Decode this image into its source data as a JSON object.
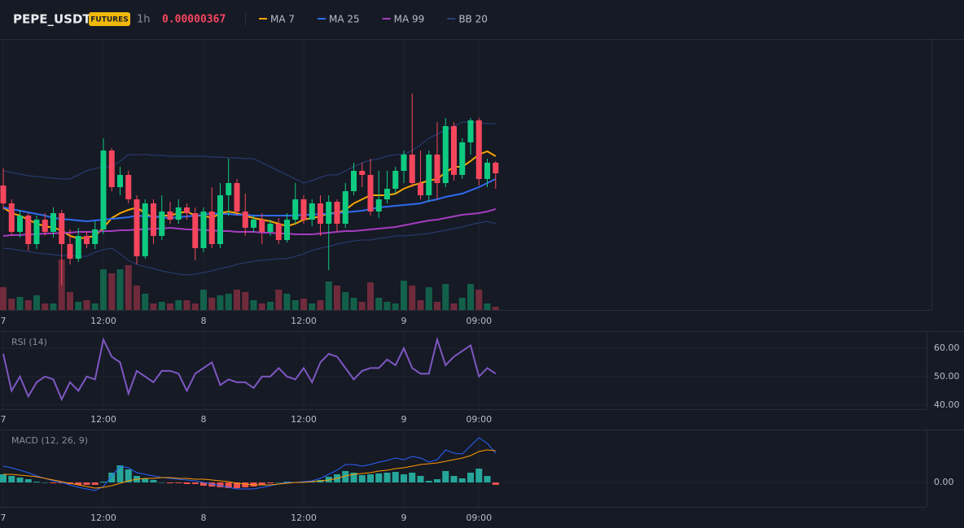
{
  "header": {
    "symbol": "PEPE_USDT",
    "badge": "FUTURES",
    "interval": "1h",
    "price": "0.00000367"
  },
  "chart_data": [
    {
      "type": "candlestick",
      "categories": [
        "7",
        null,
        null,
        null,
        null,
        null,
        null,
        null,
        null,
        null,
        null,
        null,
        "12:00",
        null,
        null,
        null,
        null,
        null,
        null,
        null,
        null,
        null,
        null,
        null,
        "8",
        null,
        null,
        null,
        null,
        null,
        null,
        null,
        null,
        null,
        null,
        null,
        "12:00",
        null,
        null,
        null,
        null,
        null,
        null,
        null,
        null,
        null,
        null,
        null,
        "9",
        null,
        null,
        null,
        null,
        null,
        null,
        null,
        null,
        "09:00",
        null,
        null
      ],
      "open": [
        3.655e-06,
        3.633e-06,
        3.598e-06,
        3.618e-06,
        3.583e-06,
        3.613e-06,
        3.598e-06,
        3.621e-06,
        3.583e-06,
        3.565e-06,
        3.593e-06,
        3.583e-06,
        3.601e-06,
        3.698e-06,
        3.653e-06,
        3.668e-06,
        3.638e-06,
        3.568e-06,
        3.633e-06,
        3.593e-06,
        3.623e-06,
        3.613e-06,
        3.628e-06,
        3.621e-06,
        3.578e-06,
        3.623e-06,
        3.583e-06,
        3.643e-06,
        3.658e-06,
        3.623e-06,
        3.603e-06,
        3.613e-06,
        3.598e-06,
        3.608e-06,
        3.588e-06,
        3.613e-06,
        3.638e-06,
        3.613e-06,
        3.633e-06,
        3.608e-06,
        3.635e-06,
        3.608e-06,
        3.648e-06,
        3.673e-06,
        3.668e-06,
        3.623e-06,
        3.638e-06,
        3.651e-06,
        3.673e-06,
        3.693e-06,
        3.658e-06,
        3.643e-06,
        3.693e-06,
        3.658e-06,
        3.728e-06,
        3.668e-06,
        3.708e-06,
        3.735e-06,
        3.663e-06,
        3.683e-06
      ],
      "close": [
        3.633e-06,
        3.598e-06,
        3.618e-06,
        3.583e-06,
        3.613e-06,
        3.598e-06,
        3.621e-06,
        3.583e-06,
        3.565e-06,
        3.593e-06,
        3.583e-06,
        3.601e-06,
        3.698e-06,
        3.653e-06,
        3.668e-06,
        3.638e-06,
        3.568e-06,
        3.633e-06,
        3.593e-06,
        3.623e-06,
        3.613e-06,
        3.628e-06,
        3.621e-06,
        3.578e-06,
        3.623e-06,
        3.583e-06,
        3.643e-06,
        3.658e-06,
        3.623e-06,
        3.603e-06,
        3.613e-06,
        3.598e-06,
        3.608e-06,
        3.588e-06,
        3.613e-06,
        3.638e-06,
        3.613e-06,
        3.633e-06,
        3.608e-06,
        3.635e-06,
        3.608e-06,
        3.648e-06,
        3.673e-06,
        3.668e-06,
        3.623e-06,
        3.638e-06,
        3.651e-06,
        3.673e-06,
        3.693e-06,
        3.658e-06,
        3.643e-06,
        3.693e-06,
        3.658e-06,
        3.728e-06,
        3.668e-06,
        3.708e-06,
        3.735e-06,
        3.663e-06,
        3.683e-06,
        3.67e-06
      ],
      "high": [
        3.676e-06,
        3.638e-06,
        3.625e-06,
        3.621e-06,
        3.618e-06,
        3.621e-06,
        3.628e-06,
        3.625e-06,
        3.601e-06,
        3.603e-06,
        3.598e-06,
        3.611e-06,
        3.713e-06,
        3.701e-06,
        3.678e-06,
        3.673e-06,
        3.643e-06,
        3.638e-06,
        3.638e-06,
        3.643e-06,
        3.635e-06,
        3.638e-06,
        3.633e-06,
        3.628e-06,
        3.628e-06,
        3.653e-06,
        3.658e-06,
        3.688e-06,
        3.663e-06,
        3.645e-06,
        3.618e-06,
        3.621e-06,
        3.613e-06,
        3.615e-06,
        3.621e-06,
        3.658e-06,
        3.643e-06,
        3.638e-06,
        3.643e-06,
        3.643e-06,
        3.638e-06,
        3.658e-06,
        3.683e-06,
        3.683e-06,
        3.688e-06,
        3.673e-06,
        3.673e-06,
        3.678e-06,
        3.698e-06,
        3.768e-06,
        3.698e-06,
        3.698e-06,
        3.733e-06,
        3.738e-06,
        3.733e-06,
        3.713e-06,
        3.738e-06,
        3.738e-06,
        3.688e-06,
        3.685e-06
      ],
      "low": [
        3.625e-06,
        3.593e-06,
        3.591e-06,
        3.575e-06,
        3.577e-06,
        3.593e-06,
        3.591e-06,
        3.533e-06,
        3.558e-06,
        3.561e-06,
        3.578e-06,
        3.577e-06,
        3.595e-06,
        3.648e-06,
        3.643e-06,
        3.633e-06,
        3.558e-06,
        3.565e-06,
        3.583e-06,
        3.588e-06,
        3.608e-06,
        3.608e-06,
        3.613e-06,
        3.563e-06,
        3.573e-06,
        3.578e-06,
        3.578e-06,
        3.618e-06,
        3.618e-06,
        3.593e-06,
        3.598e-06,
        3.583e-06,
        3.593e-06,
        3.583e-06,
        3.585e-06,
        3.608e-06,
        3.608e-06,
        3.605e-06,
        3.593e-06,
        3.551e-06,
        3.598e-06,
        3.603e-06,
        3.643e-06,
        3.653e-06,
        3.618e-06,
        3.615e-06,
        3.633e-06,
        3.645e-06,
        3.658e-06,
        3.653e-06,
        3.638e-06,
        3.635e-06,
        3.638e-06,
        3.653e-06,
        3.661e-06,
        3.663e-06,
        3.693e-06,
        3.655e-06,
        3.653e-06,
        3.651e-06
      ],
      "volume": [
        28,
        14,
        16,
        12,
        18,
        8,
        8,
        62,
        22,
        10,
        12,
        8,
        50,
        45,
        50,
        55,
        30,
        20,
        8,
        10,
        8,
        12,
        12,
        8,
        25,
        15,
        18,
        20,
        25,
        22,
        12,
        8,
        10,
        25,
        20,
        12,
        14,
        8,
        12,
        35,
        30,
        22,
        15,
        10,
        34,
        15,
        10,
        8,
        36,
        30,
        12,
        28,
        10,
        32,
        8,
        15,
        32,
        25,
        8,
        4
      ],
      "volume_lim": [
        0,
        100
      ],
      "ylim": [
        3.502e-06,
        3.835e-06
      ],
      "up_color": "#0ecb81",
      "down_color": "#f6465d",
      "series": [
        {
          "name": "MA 7",
          "color": "#f7a600",
          "values": [
            3.628e-06,
            3.621e-06,
            3.618e-06,
            3.613e-06,
            3.608e-06,
            3.605e-06,
            3.603e-06,
            3.6e-06,
            3.593e-06,
            3.59e-06,
            3.591e-06,
            3.593e-06,
            3.603e-06,
            3.615e-06,
            3.621e-06,
            3.625e-06,
            3.628e-06,
            3.621e-06,
            3.615e-06,
            3.618e-06,
            3.618e-06,
            3.621e-06,
            3.623e-06,
            3.618e-06,
            3.618e-06,
            3.615e-06,
            3.621e-06,
            3.623e-06,
            3.621e-06,
            3.618e-06,
            3.615e-06,
            3.613e-06,
            3.611e-06,
            3.608e-06,
            3.605e-06,
            3.608e-06,
            3.613e-06,
            3.615e-06,
            3.617e-06,
            3.621e-06,
            3.621e-06,
            3.625e-06,
            3.633e-06,
            3.638e-06,
            3.643e-06,
            3.643e-06,
            3.643e-06,
            3.645e-06,
            3.651e-06,
            3.655e-06,
            3.658e-06,
            3.661e-06,
            3.663e-06,
            3.671e-06,
            3.678e-06,
            3.678e-06,
            3.685e-06,
            3.693e-06,
            3.697e-06,
            3.691e-06
          ]
        },
        {
          "name": "MA 25",
          "color": "#2f6bef",
          "values": [
            3.628e-06,
            3.626e-06,
            3.624e-06,
            3.622e-06,
            3.62e-06,
            3.618e-06,
            3.615e-06,
            3.614e-06,
            3.613e-06,
            3.612e-06,
            3.611e-06,
            3.612e-06,
            3.613e-06,
            3.614e-06,
            3.615e-06,
            3.616e-06,
            3.618e-06,
            3.617e-06,
            3.617e-06,
            3.616e-06,
            3.615e-06,
            3.616e-06,
            3.617e-06,
            3.618e-06,
            3.619e-06,
            3.621e-06,
            3.62e-06,
            3.62e-06,
            3.619e-06,
            3.619e-06,
            3.618e-06,
            3.618e-06,
            3.618e-06,
            3.618e-06,
            3.618e-06,
            3.618e-06,
            3.619e-06,
            3.619e-06,
            3.62e-06,
            3.62e-06,
            3.621e-06,
            3.622e-06,
            3.623e-06,
            3.624e-06,
            3.626e-06,
            3.628e-06,
            3.629e-06,
            3.63e-06,
            3.631e-06,
            3.632e-06,
            3.633e-06,
            3.636e-06,
            3.638e-06,
            3.641e-06,
            3.643e-06,
            3.645e-06,
            3.649e-06,
            3.653e-06,
            3.658e-06,
            3.663e-06
          ]
        },
        {
          "name": "MA 99",
          "color": "#a53cc0",
          "values": [
            3.593e-06,
            3.594e-06,
            3.594e-06,
            3.595e-06,
            3.595e-06,
            3.596e-06,
            3.596e-06,
            3.597e-06,
            3.597e-06,
            3.598e-06,
            3.598e-06,
            3.598e-06,
            3.599e-06,
            3.599e-06,
            3.6e-06,
            3.6e-06,
            3.601e-06,
            3.601e-06,
            3.602e-06,
            3.602e-06,
            3.603e-06,
            3.602e-06,
            3.601e-06,
            3.601e-06,
            3.6e-06,
            3.6e-06,
            3.599e-06,
            3.599e-06,
            3.598e-06,
            3.598e-06,
            3.598e-06,
            3.597e-06,
            3.597e-06,
            3.596e-06,
            3.596e-06,
            3.595e-06,
            3.595e-06,
            3.595e-06,
            3.596e-06,
            3.597e-06,
            3.598e-06,
            3.599e-06,
            3.599e-06,
            3.6e-06,
            3.601e-06,
            3.602e-06,
            3.603e-06,
            3.604e-06,
            3.606e-06,
            3.608e-06,
            3.61e-06,
            3.612e-06,
            3.613e-06,
            3.615e-06,
            3.617e-06,
            3.619e-06,
            3.62e-06,
            3.621e-06,
            3.623e-06,
            3.626e-06
          ]
        },
        {
          "name": "BB 20",
          "color": "#2a3f7a",
          "values": [
            3.673e-06,
            3.671e-06,
            3.669e-06,
            3.667e-06,
            3.666e-06,
            3.665e-06,
            3.664e-06,
            3.663e-06,
            3.663e-06,
            3.668e-06,
            3.673e-06,
            3.676e-06,
            3.678e-06,
            3.678e-06,
            3.685e-06,
            3.693e-06,
            3.693e-06,
            3.693e-06,
            3.692e-06,
            3.692e-06,
            3.691e-06,
            3.691e-06,
            3.691e-06,
            3.691e-06,
            3.691e-06,
            3.69e-06,
            3.69e-06,
            3.689e-06,
            3.689e-06,
            3.688e-06,
            3.688e-06,
            3.683e-06,
            3.678e-06,
            3.673e-06,
            3.668e-06,
            3.663e-06,
            3.658e-06,
            3.661e-06,
            3.665e-06,
            3.668e-06,
            3.668e-06,
            3.673e-06,
            3.678e-06,
            3.683e-06,
            3.686e-06,
            3.688e-06,
            3.691e-06,
            3.693e-06,
            3.693e-06,
            3.698e-06,
            3.705e-06,
            3.713e-06,
            3.718e-06,
            3.723e-06,
            3.728e-06,
            3.733e-06,
            3.733e-06,
            3.732e-06,
            3.731e-06,
            3.731e-06
          ],
          "lower": [
            3.578e-06,
            3.577e-06,
            3.575e-06,
            3.574e-06,
            3.572e-06,
            3.571e-06,
            3.57e-06,
            3.569e-06,
            3.569e-06,
            3.568e-06,
            3.568e-06,
            3.573e-06,
            3.576e-06,
            3.578e-06,
            3.571e-06,
            3.563e-06,
            3.558e-06,
            3.555e-06,
            3.553e-06,
            3.55e-06,
            3.548e-06,
            3.546e-06,
            3.545e-06,
            3.546e-06,
            3.548e-06,
            3.55e-06,
            3.553e-06,
            3.555e-06,
            3.558e-06,
            3.56e-06,
            3.562e-06,
            3.563e-06,
            3.564e-06,
            3.565e-06,
            3.565e-06,
            3.568e-06,
            3.571e-06,
            3.575e-06,
            3.578e-06,
            3.58e-06,
            3.583e-06,
            3.585e-06,
            3.587e-06,
            3.588e-06,
            3.588e-06,
            3.59e-06,
            3.591e-06,
            3.593e-06,
            3.593e-06,
            3.594e-06,
            3.595e-06,
            3.596e-06,
            3.598e-06,
            3.6e-06,
            3.602e-06,
            3.604e-06,
            3.607e-06,
            3.609e-06,
            3.611e-06,
            3.608e-06
          ]
        }
      ]
    },
    {
      "type": "line",
      "title": "RSI (14)",
      "series": [
        {
          "color": "#7e57c2",
          "values": [
            58,
            45,
            50,
            43,
            48,
            50,
            49,
            42,
            48,
            45,
            50,
            49,
            63,
            57,
            55,
            44,
            52,
            50,
            48,
            52,
            52,
            51,
            45,
            51,
            53,
            55,
            47,
            49,
            48,
            48,
            46,
            50,
            50,
            53,
            50,
            49,
            53,
            48,
            55,
            58,
            57,
            53,
            49,
            52,
            53,
            53,
            56,
            54,
            60,
            53,
            51,
            51,
            63,
            54,
            57,
            59,
            61,
            50,
            53,
            51
          ]
        }
      ],
      "ylim": [
        38.5,
        66
      ],
      "yticks": [
        {
          "value": 40,
          "label": "40.00"
        },
        {
          "value": 50,
          "label": "50.00"
        },
        {
          "value": 60,
          "label": "60.00"
        }
      ]
    },
    {
      "type": "macd",
      "title": "MACD (12, 26, 9)",
      "series": [
        {
          "color": "#2962ff",
          "values": [
            2e-09,
            1.8e-09,
            1.5e-09,
            1.2e-09,
            8e-10,
            5e-10,
            2e-10,
            0,
            -3e-10,
            -6e-10,
            -8e-10,
            -1e-09,
            -5e-10,
            8e-10,
            2e-09,
            1.8e-09,
            1.2e-09,
            1e-09,
            8e-10,
            6e-10,
            5e-10,
            4e-10,
            3e-10,
            2e-10,
            0,
            -2e-10,
            -4e-10,
            -6e-10,
            -8e-10,
            -8e-10,
            -8e-10,
            -6e-10,
            -4e-10,
            -2e-10,
            0,
            0,
            1e-10,
            2e-10,
            5e-10,
            1e-09,
            1.5e-09,
            2.2e-09,
            2.2e-09,
            2e-09,
            2.2e-09,
            2.5e-09,
            2.7e-09,
            3e-09,
            2.8e-09,
            3.2e-09,
            3e-09,
            2.5e-09,
            2.8e-09,
            4e-09,
            3.6e-09,
            3.5e-09,
            4.5e-09,
            5.5e-09,
            4.8e-09,
            3.6e-09
          ]
        },
        {
          "color": "#ff9800",
          "values": [
            1e-09,
            1e-09,
            9e-10,
            8e-10,
            7e-10,
            5e-10,
            3e-10,
            1e-10,
            -1e-10,
            -3e-10,
            -5e-10,
            -7e-10,
            -6e-10,
            -4e-10,
            -1e-10,
            2e-10,
            4e-10,
            5e-10,
            5e-10,
            6e-10,
            6e-10,
            5e-10,
            5e-10,
            4e-10,
            4e-10,
            3e-10,
            2e-10,
            1e-10,
            -1e-10,
            -2e-10,
            -3e-10,
            -3e-10,
            -3e-10,
            -2e-10,
            -1e-10,
            0,
            0,
            1e-10,
            2e-10,
            3e-10,
            5e-10,
            8e-10,
            1e-09,
            1.1e-09,
            1.2e-09,
            1.4e-09,
            1.5e-09,
            1.7e-09,
            1.8e-09,
            2e-09,
            2.2e-09,
            2.3e-09,
            2.4e-09,
            2.6e-09,
            2.8e-09,
            3e-09,
            3.3e-09,
            3.8e-09,
            4e-09,
            3.9e-09
          ]
        }
      ],
      "histogram": [
        1e-09,
        8e-10,
        6e-10,
        4e-10,
        1e-10,
        0,
        -1e-10,
        -1e-10,
        -2e-10,
        -3e-10,
        -3e-10,
        -3e-10,
        1e-10,
        1.2e-09,
        2.1e-09,
        1.6e-09,
        8e-10,
        5e-10,
        3e-10,
        0,
        -1e-10,
        -1e-10,
        -2e-10,
        -2e-10,
        -4e-10,
        -5e-10,
        -6e-10,
        -7e-10,
        -7e-10,
        -6e-10,
        -5e-10,
        -3e-10,
        -1e-10,
        0,
        1e-10,
        0,
        1e-10,
        1e-10,
        3e-10,
        7e-10,
        1e-09,
        1.4e-09,
        1.2e-09,
        9e-10,
        1e-09,
        1.1e-09,
        1.2e-09,
        1.3e-09,
        1e-09,
        1.2e-09,
        8e-10,
        2e-10,
        4e-10,
        1.4e-09,
        8e-10,
        5e-10,
        1.2e-09,
        1.7e-09,
        8e-10,
        -3e-10
      ],
      "hist_up_color": "#26a69a",
      "hist_down_color": "#ef5350",
      "ylim": [
        -3e-09,
        6.5e-09
      ],
      "yticks": [
        {
          "value": 0,
          "label": "0.00"
        }
      ]
    }
  ]
}
